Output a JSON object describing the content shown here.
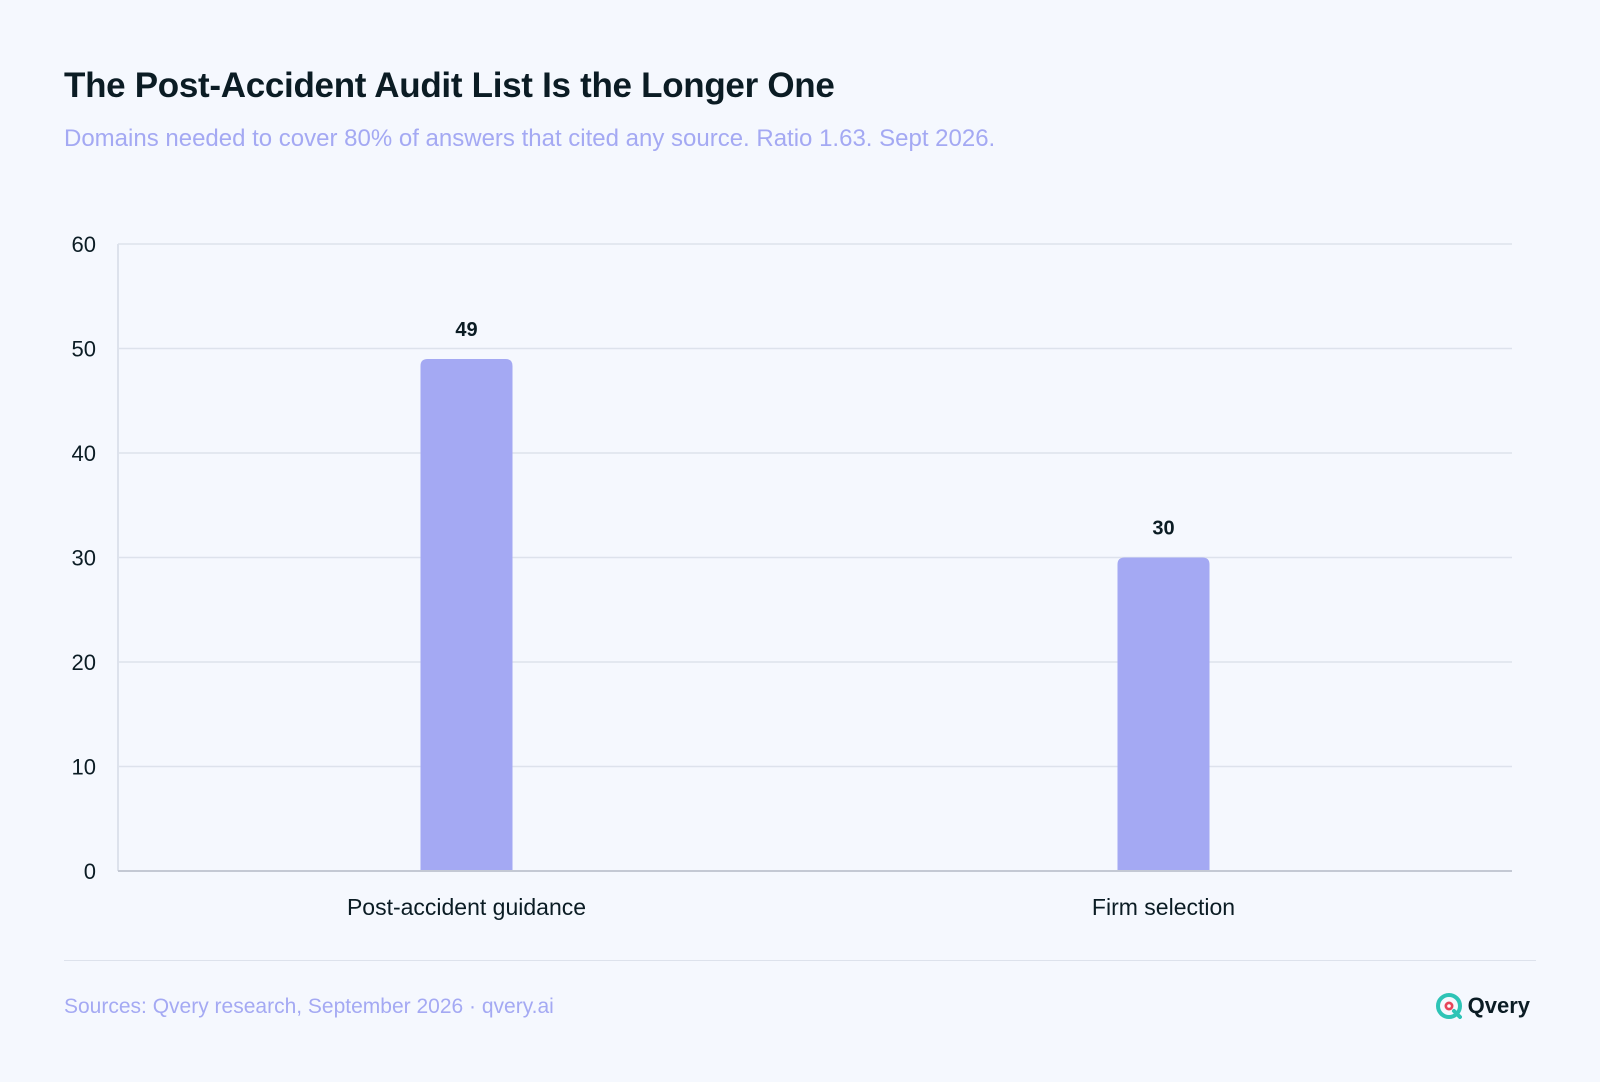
{
  "header": {
    "title": "The Post-Accident Audit List Is the Longer One",
    "subtitle": "Domains needed to cover 80% of answers that cited any source. Ratio 1.63. Sept 2026."
  },
  "chart_data": {
    "type": "bar",
    "categories": [
      "Post-accident guidance",
      "Firm selection"
    ],
    "values": [
      49,
      30
    ],
    "data_labels": [
      "49",
      "30"
    ],
    "ylim": [
      0,
      60
    ],
    "yticks": [
      0,
      10,
      20,
      30,
      40,
      50,
      60
    ],
    "grid": true,
    "bar_color": "#a4a9f3",
    "grid_color": "#dde2ec",
    "text_color": "#0b1c24"
  },
  "footer": {
    "source": "Sources: Qvery research, September 2026 · qvery.ai",
    "brand": "Qvery",
    "logo_icon": "qvery-logo-icon",
    "logo_color": "#2ec4b6",
    "logo_accent": "#e6455a"
  }
}
